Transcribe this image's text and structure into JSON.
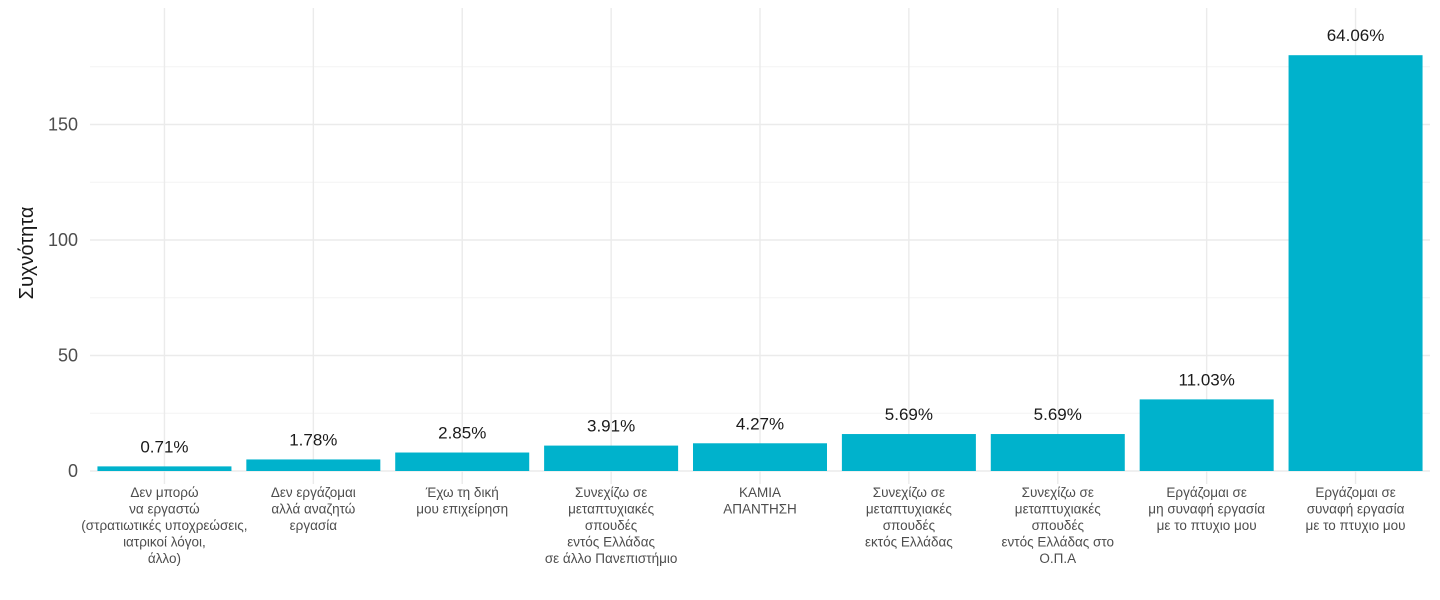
{
  "chart_data": {
    "type": "bar",
    "title": "",
    "xlabel": "",
    "ylabel": "Συχνότητα",
    "ylim": [
      0,
      185
    ],
    "yticks": [
      0,
      50,
      100,
      150
    ],
    "grid": true,
    "bar_color": "#00b2cc",
    "categories": [
      [
        "Δεν μπορώ",
        "να εργαστώ",
        "(στρατιωτικές υποχρεώσεις,",
        "ιατρικοί λόγοι,",
        "άλλο)"
      ],
      [
        "Δεν εργάζομαι",
        "αλλά αναζητώ",
        "εργασία"
      ],
      [
        "Έχω τη δική",
        "μου επιχείρηση"
      ],
      [
        "Συνεχίζω σε",
        "μεταπτυχιακές",
        "σπουδές",
        "εντός Ελλάδας",
        "σε άλλο Πανεπιστήμιο"
      ],
      [
        "ΚΑΜΙΑ",
        "ΑΠΑΝΤΗΣΗ"
      ],
      [
        "Συνεχίζω σε",
        "μεταπτυχιακές",
        "σπουδές",
        "εκτός Ελλάδας"
      ],
      [
        "Συνεχίζω σε",
        "μεταπτυχιακές",
        "σπουδές",
        "εντός Ελλάδας στο",
        "Ο.Π.Α"
      ],
      [
        "Εργάζομαι σε",
        "μη συναφή εργασία",
        "με το πτυχιο μου"
      ],
      [
        "Εργάζομαι σε",
        "συναφή εργασία",
        "με το πτυχιο μου"
      ]
    ],
    "values": [
      2,
      5,
      8,
      11,
      12,
      16,
      16,
      31,
      180
    ],
    "data_labels": [
      "0.71%",
      "1.78%",
      "2.85%",
      "3.91%",
      "4.27%",
      "5.69%",
      "5.69%",
      "11.03%",
      "64.06%"
    ]
  }
}
